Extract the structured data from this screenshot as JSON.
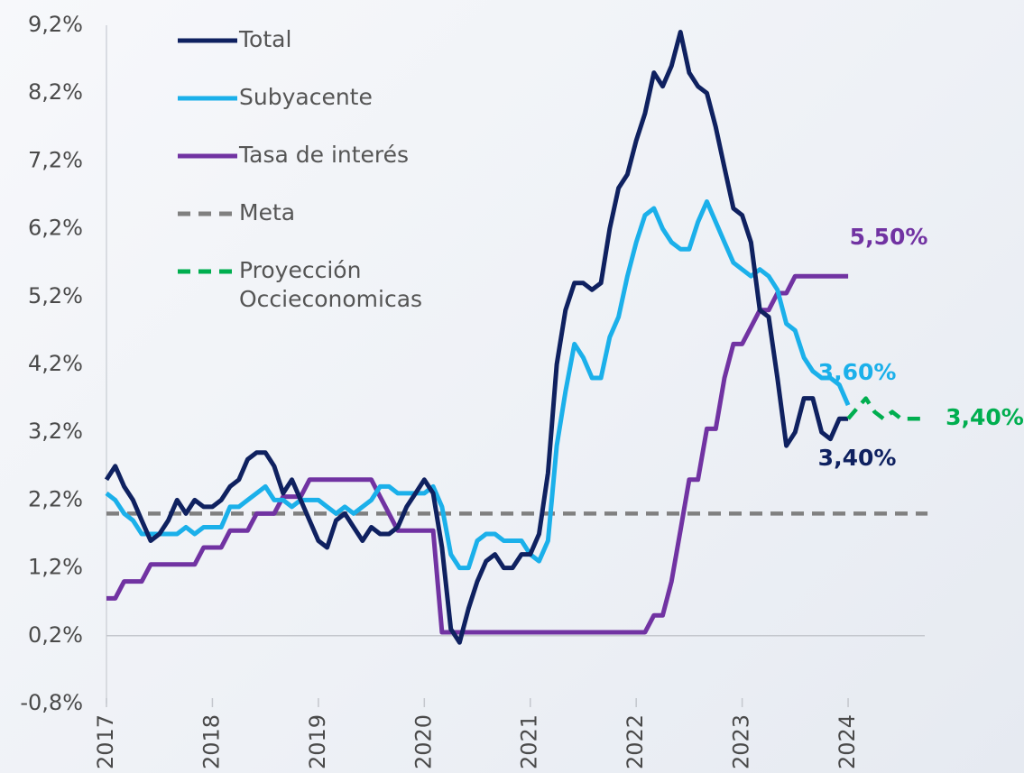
{
  "chart_data": {
    "type": "line",
    "x": [
      2017,
      2017.083,
      2017.167,
      2017.25,
      2017.333,
      2017.417,
      2017.5,
      2017.583,
      2017.667,
      2017.75,
      2017.833,
      2017.917,
      2018,
      2018.083,
      2018.167,
      2018.25,
      2018.333,
      2018.417,
      2018.5,
      2018.583,
      2018.667,
      2018.75,
      2018.833,
      2018.917,
      2019,
      2019.083,
      2019.167,
      2019.25,
      2019.333,
      2019.417,
      2019.5,
      2019.583,
      2019.667,
      2019.75,
      2019.833,
      2019.917,
      2020,
      2020.083,
      2020.167,
      2020.25,
      2020.333,
      2020.417,
      2020.5,
      2020.583,
      2020.667,
      2020.75,
      2020.833,
      2020.917,
      2021,
      2021.083,
      2021.167,
      2021.25,
      2021.333,
      2021.417,
      2021.5,
      2021.583,
      2021.667,
      2021.75,
      2021.833,
      2021.917,
      2022,
      2022.083,
      2022.167,
      2022.25,
      2022.333,
      2022.417,
      2022.5,
      2022.583,
      2022.667,
      2022.75,
      2022.833,
      2022.917,
      2023,
      2023.083,
      2023.167,
      2023.25,
      2023.333,
      2023.417,
      2023.5,
      2023.583,
      2023.667,
      2023.75,
      2023.833,
      2023.917,
      2024,
      2024.083,
      2024.167,
      2024.25,
      2024.333,
      2024.417,
      2024.5,
      2024.583,
      2024.667,
      2024.75
    ],
    "series": [
      {
        "name": "Total",
        "color": "#0f2160",
        "dashed": false,
        "end_label": "3,40%",
        "values": [
          2.5,
          2.7,
          2.4,
          2.2,
          1.9,
          1.6,
          1.7,
          1.9,
          2.2,
          2.0,
          2.2,
          2.1,
          2.1,
          2.2,
          2.4,
          2.5,
          2.8,
          2.9,
          2.9,
          2.7,
          2.3,
          2.5,
          2.2,
          1.9,
          1.6,
          1.5,
          1.9,
          2.0,
          1.8,
          1.6,
          1.8,
          1.7,
          1.7,
          1.8,
          2.1,
          2.3,
          2.5,
          2.3,
          1.5,
          0.3,
          0.1,
          0.6,
          1.0,
          1.3,
          1.4,
          1.2,
          1.2,
          1.4,
          1.4,
          1.7,
          2.6,
          4.2,
          5.0,
          5.4,
          5.4,
          5.3,
          5.4,
          6.2,
          6.8,
          7.0,
          7.5,
          7.9,
          8.5,
          8.3,
          8.6,
          9.1,
          8.5,
          8.3,
          8.2,
          7.7,
          7.1,
          6.5,
          6.4,
          6.0,
          5.0,
          4.9,
          4.0,
          3.0,
          3.2,
          3.7,
          3.7,
          3.2,
          3.1,
          3.4,
          3.4,
          null,
          null,
          null,
          null,
          null,
          null,
          null,
          null,
          null
        ]
      },
      {
        "name": "Subyacente",
        "color": "#1bb0ea",
        "dashed": false,
        "end_label": "3,60%",
        "values": [
          2.3,
          2.2,
          2.0,
          1.9,
          1.7,
          1.7,
          1.7,
          1.7,
          1.7,
          1.8,
          1.7,
          1.8,
          1.8,
          1.8,
          2.1,
          2.1,
          2.2,
          2.3,
          2.4,
          2.2,
          2.2,
          2.1,
          2.2,
          2.2,
          2.2,
          2.1,
          2.0,
          2.1,
          2.0,
          2.1,
          2.2,
          2.4,
          2.4,
          2.3,
          2.3,
          2.3,
          2.3,
          2.4,
          2.1,
          1.4,
          1.2,
          1.2,
          1.6,
          1.7,
          1.7,
          1.6,
          1.6,
          1.6,
          1.4,
          1.3,
          1.6,
          3.0,
          3.8,
          4.5,
          4.3,
          4.0,
          4.0,
          4.6,
          4.9,
          5.5,
          6.0,
          6.4,
          6.5,
          6.2,
          6.0,
          5.9,
          5.9,
          6.3,
          6.6,
          6.3,
          6.0,
          5.7,
          5.6,
          5.5,
          5.6,
          5.5,
          5.3,
          4.8,
          4.7,
          4.3,
          4.1,
          4.0,
          4.0,
          3.9,
          3.6,
          null,
          null,
          null,
          null,
          null,
          null,
          null,
          null,
          null
        ]
      },
      {
        "name": "Tasa de interés",
        "color": "#7133a2",
        "dashed": false,
        "end_label": "5,50%",
        "values": [
          0.75,
          0.75,
          1.0,
          1.0,
          1.0,
          1.25,
          1.25,
          1.25,
          1.25,
          1.25,
          1.25,
          1.5,
          1.5,
          1.5,
          1.75,
          1.75,
          1.75,
          2.0,
          2.0,
          2.0,
          2.25,
          2.25,
          2.25,
          2.5,
          2.5,
          2.5,
          2.5,
          2.5,
          2.5,
          2.5,
          2.5,
          2.25,
          2.0,
          1.75,
          1.75,
          1.75,
          1.75,
          1.75,
          0.25,
          0.25,
          0.25,
          0.25,
          0.25,
          0.25,
          0.25,
          0.25,
          0.25,
          0.25,
          0.25,
          0.25,
          0.25,
          0.25,
          0.25,
          0.25,
          0.25,
          0.25,
          0.25,
          0.25,
          0.25,
          0.25,
          0.25,
          0.25,
          0.5,
          0.5,
          1.0,
          1.75,
          2.5,
          2.5,
          3.25,
          3.25,
          4.0,
          4.5,
          4.5,
          4.75,
          5.0,
          5.0,
          5.25,
          5.25,
          5.5,
          5.5,
          5.5,
          5.5,
          5.5,
          5.5,
          5.5,
          null,
          null,
          null,
          null,
          null,
          null,
          null,
          null,
          null
        ]
      },
      {
        "name": "Meta",
        "color": "#808080",
        "dashed": true,
        "values": [
          2,
          2,
          2,
          2,
          2,
          2,
          2,
          2,
          2,
          2,
          2,
          2,
          2,
          2,
          2,
          2,
          2,
          2,
          2,
          2,
          2,
          2,
          2,
          2,
          2,
          2,
          2,
          2,
          2,
          2,
          2,
          2,
          2,
          2,
          2,
          2,
          2,
          2,
          2,
          2,
          2,
          2,
          2,
          2,
          2,
          2,
          2,
          2,
          2,
          2,
          2,
          2,
          2,
          2,
          2,
          2,
          2,
          2,
          2,
          2,
          2,
          2,
          2,
          2,
          2,
          2,
          2,
          2,
          2,
          2,
          2,
          2,
          2,
          2,
          2,
          2,
          2,
          2,
          2,
          2,
          2,
          2,
          2,
          2,
          2,
          2,
          2,
          2,
          2,
          2,
          2,
          2,
          2,
          2
        ]
      },
      {
        "name": "Proyección Occieconomicas",
        "color": "#00ae4f",
        "dashed": true,
        "end_label": "3,40%",
        "values": [
          null,
          null,
          null,
          null,
          null,
          null,
          null,
          null,
          null,
          null,
          null,
          null,
          null,
          null,
          null,
          null,
          null,
          null,
          null,
          null,
          null,
          null,
          null,
          null,
          null,
          null,
          null,
          null,
          null,
          null,
          null,
          null,
          null,
          null,
          null,
          null,
          null,
          null,
          null,
          null,
          null,
          null,
          null,
          null,
          null,
          null,
          null,
          null,
          null,
          null,
          null,
          null,
          null,
          null,
          null,
          null,
          null,
          null,
          null,
          null,
          null,
          null,
          null,
          null,
          null,
          null,
          null,
          null,
          null,
          null,
          null,
          null,
          null,
          null,
          null,
          null,
          null,
          null,
          null,
          null,
          null,
          null,
          null,
          null,
          3.4,
          3.55,
          3.7,
          3.5,
          3.4,
          3.5,
          3.4,
          3.4,
          3.4,
          3.4
        ]
      }
    ],
    "xlim": [
      2017,
      2024.8
    ],
    "xticks": [
      2017,
      2018,
      2019,
      2020,
      2021,
      2022,
      2023,
      2024
    ],
    "ylim": [
      -0.8,
      9.2
    ],
    "yticks": [
      {
        "value": -0.8,
        "label": "-0,8%"
      },
      {
        "value": 0.2,
        "label": "0,2%"
      },
      {
        "value": 1.2,
        "label": "1,2%"
      },
      {
        "value": 2.2,
        "label": "2,2%"
      },
      {
        "value": 3.2,
        "label": "3,2%"
      },
      {
        "value": 4.2,
        "label": "4,2%"
      },
      {
        "value": 5.2,
        "label": "5,2%"
      },
      {
        "value": 6.2,
        "label": "6,2%"
      },
      {
        "value": 7.2,
        "label": "7,2%"
      },
      {
        "value": 8.2,
        "label": "8,2%"
      },
      {
        "value": 9.2,
        "label": "9,2%"
      }
    ],
    "xaxis_crosses": 0.2,
    "grid": false,
    "legend": "top-left"
  }
}
